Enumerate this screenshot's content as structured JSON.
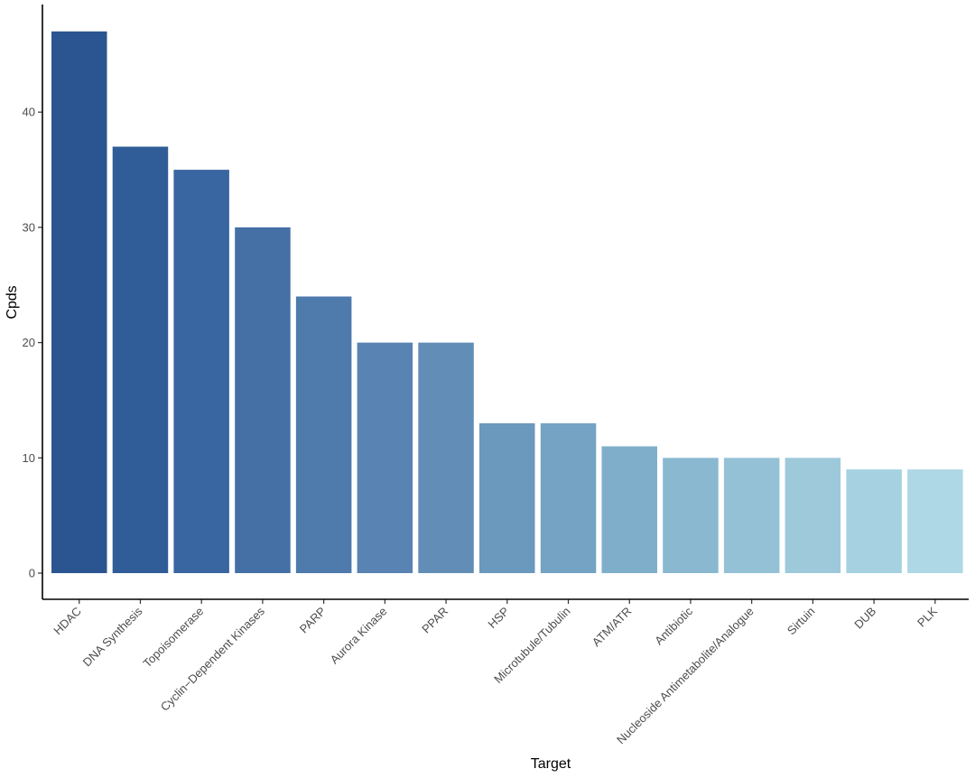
{
  "chart_data": {
    "type": "bar",
    "title": "",
    "xlabel": "Target",
    "ylabel": "Cpds",
    "ylim": [
      0,
      50
    ],
    "yticks": [
      0,
      10,
      20,
      30,
      40
    ],
    "grid": false,
    "legend": "none",
    "categories": [
      "HDAC",
      "DNA Synthesis",
      "Topoisomerase",
      "Cyclin−Dependent Kinases",
      "PARP",
      "Aurora Kinase",
      "PPAR",
      "HSP",
      "Microtubule/Tubulin",
      "ATM/ATR",
      "Antibiotic",
      "Nucleoside Antimetabolite/Analogue",
      "Sirtuin",
      "DUB",
      "PLK"
    ],
    "values": [
      47,
      37,
      35,
      30,
      24,
      20,
      20,
      13,
      13,
      11,
      10,
      10,
      10,
      9,
      9
    ],
    "bar_colors": [
      "#2A5591",
      "#305D98",
      "#3966A0",
      "#4470A6",
      "#4E7AAC",
      "#5883B2",
      "#628DB6",
      "#6B98BD",
      "#74A3C4",
      "#7FAECB",
      "#8AB8D0",
      "#94C1D5",
      "#9EC9DB",
      "#A6D1E0",
      "#AED8E5"
    ]
  }
}
